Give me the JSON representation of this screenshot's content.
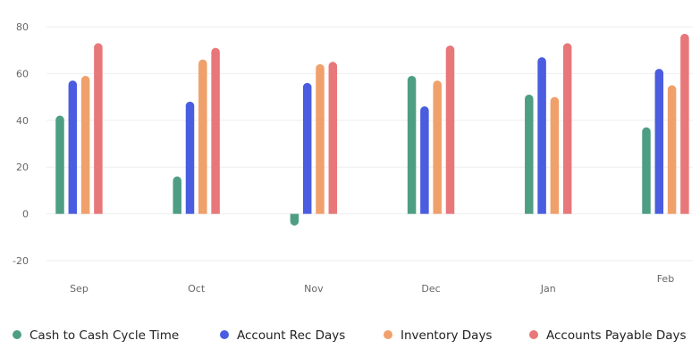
{
  "chart_data": {
    "type": "bar",
    "title": "",
    "xlabel": "",
    "ylabel": "",
    "ylim": [
      -20,
      80
    ],
    "yticks": [
      80,
      60,
      40,
      20,
      0,
      -20
    ],
    "grid": true,
    "legend_position": "bottom",
    "categories": [
      "Sep",
      "Oct",
      "Nov",
      "Dec",
      "Jan",
      "Feb"
    ],
    "series": [
      {
        "name": "Cash to Cash Cycle Time",
        "color": "#4e9e84",
        "values": [
          42,
          16,
          -5,
          59,
          51,
          37
        ]
      },
      {
        "name": "Account Rec Days",
        "color": "#4a5de0",
        "values": [
          57,
          48,
          56,
          46,
          67,
          62
        ]
      },
      {
        "name": "Inventory Days",
        "color": "#f0a06b",
        "values": [
          59,
          66,
          64,
          57,
          50,
          55
        ]
      },
      {
        "name": "Accounts Payable Days",
        "color": "#e8777a",
        "values": [
          73,
          71,
          65,
          72,
          73,
          77
        ]
      }
    ]
  }
}
